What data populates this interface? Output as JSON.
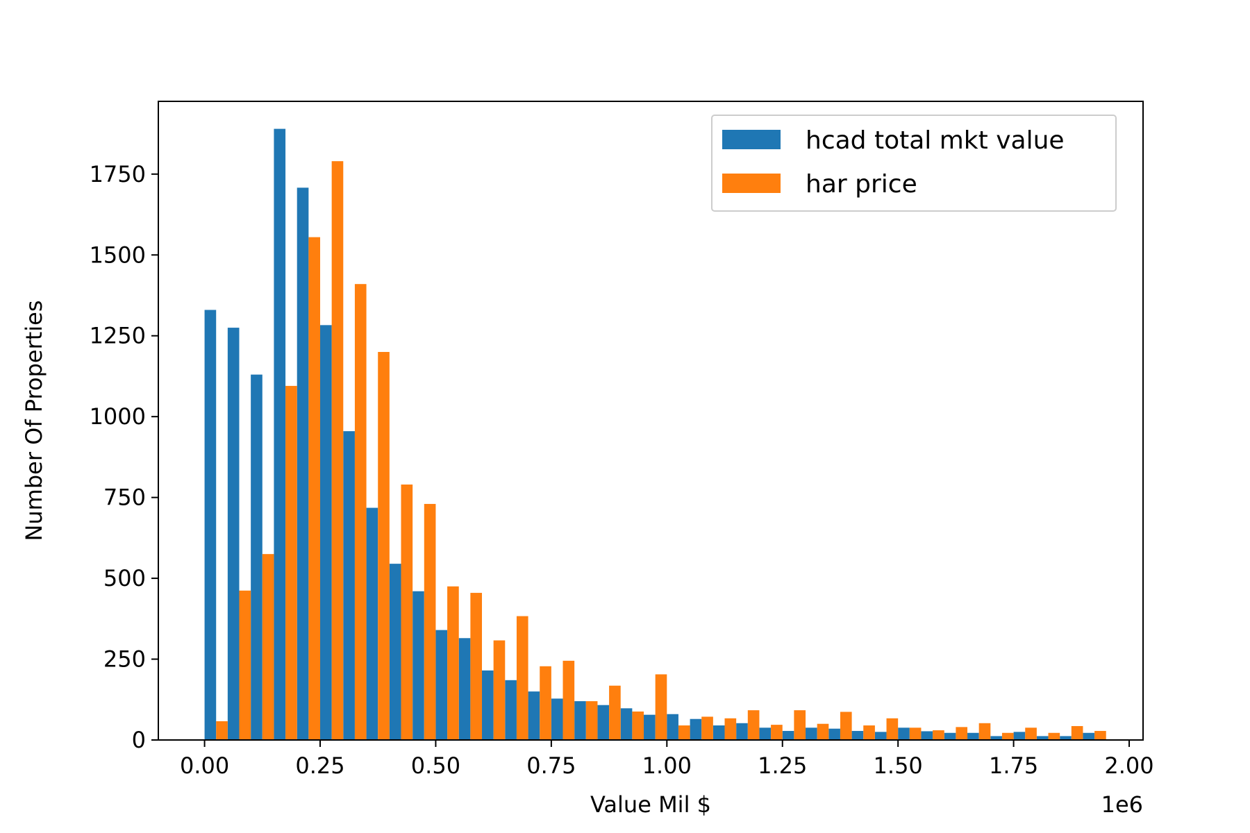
{
  "chart_data": {
    "type": "bar",
    "title": "",
    "xlabel": "Value Mil $",
    "ylabel": "Number Of Properties",
    "x_offset_label": "1e6",
    "xlim": [
      -0.1,
      2.03
    ],
    "ylim": [
      0,
      1975
    ],
    "xticks": [
      0.0,
      0.25,
      0.5,
      0.75,
      1.0,
      1.25,
      1.5,
      1.75,
      2.0
    ],
    "xtick_labels": [
      "0.00",
      "0.25",
      "0.50",
      "0.75",
      "1.00",
      "1.25",
      "1.50",
      "1.75",
      "2.00"
    ],
    "yticks": [
      0,
      250,
      500,
      750,
      1000,
      1250,
      1500,
      1750
    ],
    "ytick_labels": [
      "0",
      "250",
      "500",
      "750",
      "1000",
      "1250",
      "1500",
      "1750"
    ],
    "bin_width": 0.05,
    "bins_start": 0.0,
    "legend_position": "top-right",
    "grid": false,
    "series": [
      {
        "name": "hcad total mkt value",
        "color": "#1f77b4",
        "values": [
          1330,
          1275,
          1130,
          1890,
          1708,
          1283,
          955,
          718,
          545,
          460,
          340,
          315,
          215,
          185,
          150,
          128,
          120,
          108,
          98,
          78,
          80,
          65,
          45,
          52,
          38,
          28,
          38,
          35,
          28,
          25,
          38,
          27,
          22,
          22,
          12,
          25,
          12,
          12,
          22
        ]
      },
      {
        "name": "har price",
        "color": "#ff7f0e",
        "values": [
          58,
          462,
          575,
          1095,
          1555,
          1790,
          1410,
          1200,
          790,
          730,
          475,
          455,
          308,
          383,
          228,
          245,
          120,
          168,
          88,
          203,
          45,
          72,
          67,
          92,
          47,
          92,
          50,
          87,
          45,
          67,
          38,
          30,
          40,
          52,
          22,
          38,
          22,
          43,
          28
        ]
      }
    ]
  }
}
